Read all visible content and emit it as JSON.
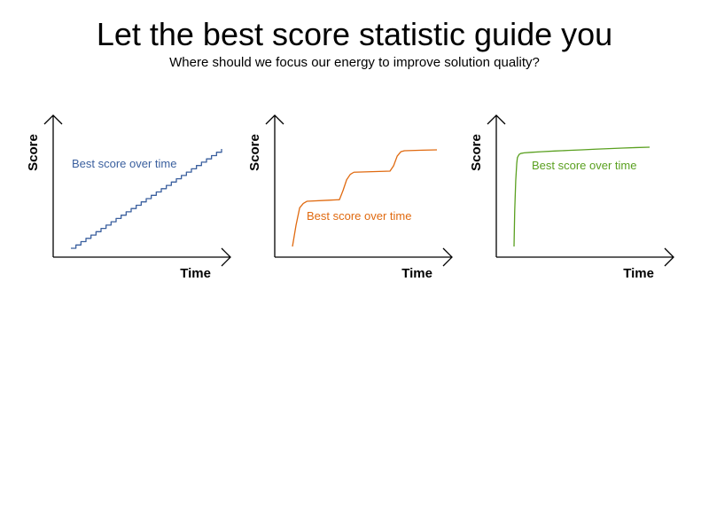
{
  "title": "Let the best score statistic guide you",
  "subtitle": "Where should we focus our energy to improve solution quality?",
  "colors": {
    "blue": "#3a5f9e",
    "orange": "#e06a10",
    "green": "#5aa020",
    "axis": "#000000"
  },
  "chart_data": [
    {
      "type": "line",
      "title": "",
      "xlabel": "Time",
      "ylabel": "Score",
      "grid": false,
      "legend": "none",
      "series": [
        {
          "name": "Best score over time",
          "color": "#3a5f9e",
          "shape": "staircase",
          "x": [
            0,
            1,
            2,
            3,
            4,
            5,
            6,
            7,
            8,
            9,
            10,
            11,
            12,
            13,
            14,
            15,
            16,
            17,
            18,
            19,
            20,
            21,
            22,
            23,
            24,
            25,
            26,
            27,
            28,
            29,
            30
          ],
          "y": [
            0,
            3.3,
            6.7,
            10,
            13.3,
            16.7,
            20,
            23.3,
            26.7,
            30,
            33.3,
            36.7,
            40,
            43.3,
            46.7,
            50,
            53.3,
            56.7,
            60,
            63.3,
            66.7,
            70,
            73.3,
            76.7,
            80,
            83.3,
            86.7,
            90,
            93.3,
            96.7,
            100
          ]
        }
      ]
    },
    {
      "type": "line",
      "title": "",
      "xlabel": "Time",
      "ylabel": "Score",
      "grid": false,
      "legend": "none",
      "series": [
        {
          "name": "Best score over time",
          "color": "#e06a10",
          "shape": "plateaus",
          "x": [
            0,
            1,
            2,
            3,
            4,
            10,
            13,
            14,
            15,
            16,
            17,
            22,
            27,
            28,
            29,
            30,
            31,
            36,
            40
          ],
          "y": [
            0,
            20,
            36,
            40,
            42,
            43,
            43.5,
            52,
            62,
            67,
            69,
            69.5,
            70,
            75,
            84,
            88,
            89,
            89.5,
            89.8
          ]
        }
      ]
    },
    {
      "type": "line",
      "title": "",
      "xlabel": "Time",
      "ylabel": "Score",
      "grid": false,
      "legend": "none",
      "series": [
        {
          "name": "Best score over time",
          "color": "#5aa020",
          "shape": "fast-rise",
          "x": [
            0,
            0.2,
            0.5,
            0.8,
            1,
            1.5,
            2,
            3,
            5,
            8,
            12,
            16,
            20,
            24,
            28,
            32,
            36,
            40
          ],
          "y": [
            0,
            35,
            65,
            82,
            88,
            91,
            92,
            92.6,
            93.1,
            93.7,
            94.4,
            95,
            95.6,
            96.2,
            96.8,
            97.3,
            97.8,
            98.2
          ]
        }
      ]
    }
  ]
}
